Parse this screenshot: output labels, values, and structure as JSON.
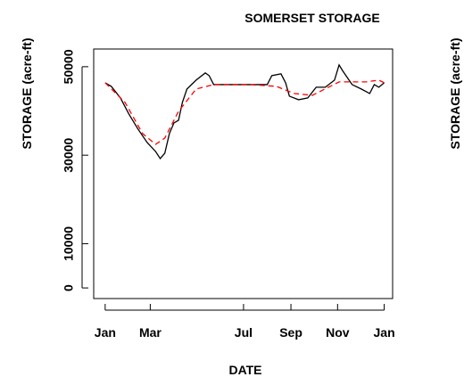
{
  "chart_data": {
    "type": "line",
    "title": "SOMERSET STORAGE",
    "xlabel": "DATE",
    "ylabel": "STORAGE (acre-ft)",
    "x_observed": [
      0,
      8,
      20,
      31,
      43,
      55,
      66,
      72,
      78,
      84,
      90,
      96,
      101,
      107,
      119,
      131,
      136,
      142,
      166,
      189,
      212,
      218,
      230,
      236,
      241,
      253,
      265,
      276,
      288,
      300,
      306,
      311,
      323,
      335,
      346,
      352,
      358,
      365
    ],
    "x_smoothed": [
      0,
      26,
      49,
      66,
      78,
      96,
      119,
      142,
      189,
      224,
      247,
      271,
      306,
      341,
      358,
      365
    ],
    "series": [
      {
        "color": "#000000",
        "dash": "none",
        "values": [
          46370,
          45560,
          42940,
          39310,
          35880,
          32860,
          30840,
          29230,
          30440,
          34880,
          37300,
          37900,
          41930,
          44960,
          46970,
          48590,
          47980,
          45960,
          45960,
          45960,
          45960,
          47980,
          48380,
          46370,
          43340,
          42540,
          42940,
          45360,
          45360,
          46970,
          50400,
          48990,
          45960,
          44960,
          43950,
          45960,
          45360,
          46370
        ]
      },
      {
        "color": "#ff0000",
        "dash": "6,4",
        "values": [
          46370,
          41930,
          34880,
          32460,
          33870,
          39920,
          44960,
          45960,
          45960,
          45560,
          43950,
          43540,
          46570,
          46570,
          46970,
          46370
        ]
      }
    ],
    "xlim": [
      -15,
      376
    ],
    "ylim": [
      -2400,
      54000
    ],
    "xticks": [
      {
        "value": 0,
        "label": "Jan"
      },
      {
        "value": 59,
        "label": "Mar"
      },
      {
        "value": 181,
        "label": "Jul"
      },
      {
        "value": 243,
        "label": "Sep"
      },
      {
        "value": 304,
        "label": "Nov"
      },
      {
        "value": 365,
        "label": "Jan"
      }
    ],
    "yticks": [
      0,
      10000,
      30000,
      50000
    ]
  },
  "panel2": {
    "ylabel": "STORAGE (acre-ft)"
  }
}
